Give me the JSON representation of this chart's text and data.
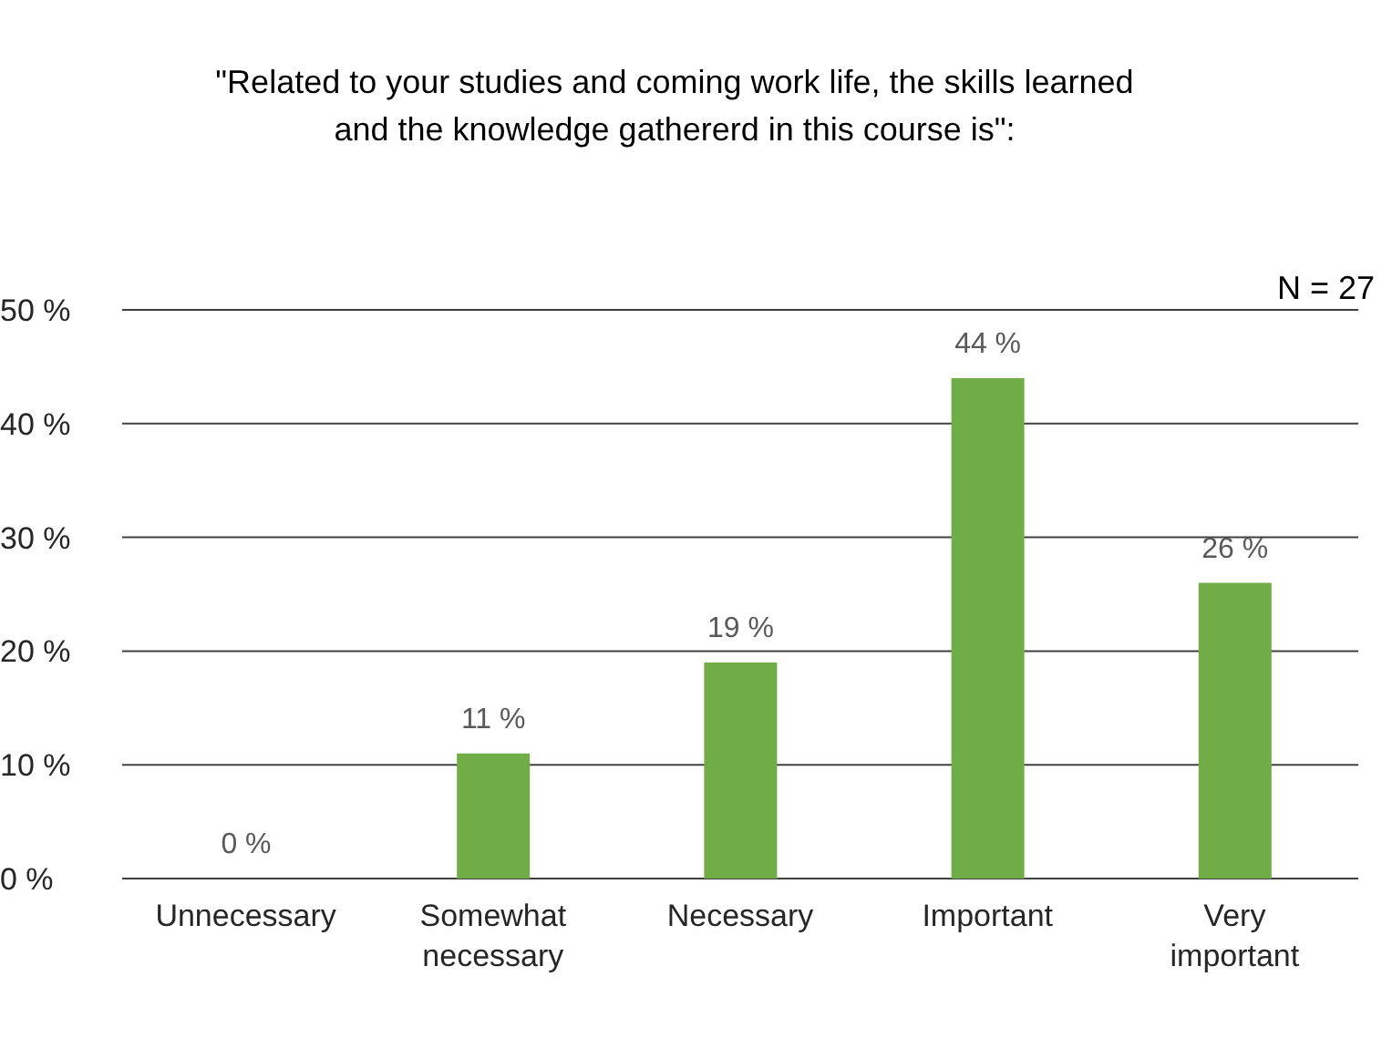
{
  "chart_data": {
    "type": "bar",
    "title": "\"Related to your studies and coming work life, the skills learned and the knowledge gathererd in this course is\":",
    "categories": [
      "Unnecessary",
      "Somewhat necessary",
      "Necessary",
      "Important",
      "Very important"
    ],
    "values": [
      0,
      11,
      19,
      44,
      26
    ],
    "value_labels": [
      "0 %",
      "11 %",
      "19 %",
      "44 %",
      "26 %"
    ],
    "color": "#70ad47",
    "ylim": [
      0,
      50
    ],
    "yticks": [
      {
        "value": 0,
        "label": "0 %"
      },
      {
        "value": 10,
        "label": "10 %"
      },
      {
        "value": 20,
        "label": "20 %"
      },
      {
        "value": 30,
        "label": "30 %"
      },
      {
        "value": 40,
        "label": "40 %"
      },
      {
        "value": 50,
        "label": "50 %"
      }
    ],
    "grid": "y",
    "annotations": [
      "N = 27"
    ]
  }
}
